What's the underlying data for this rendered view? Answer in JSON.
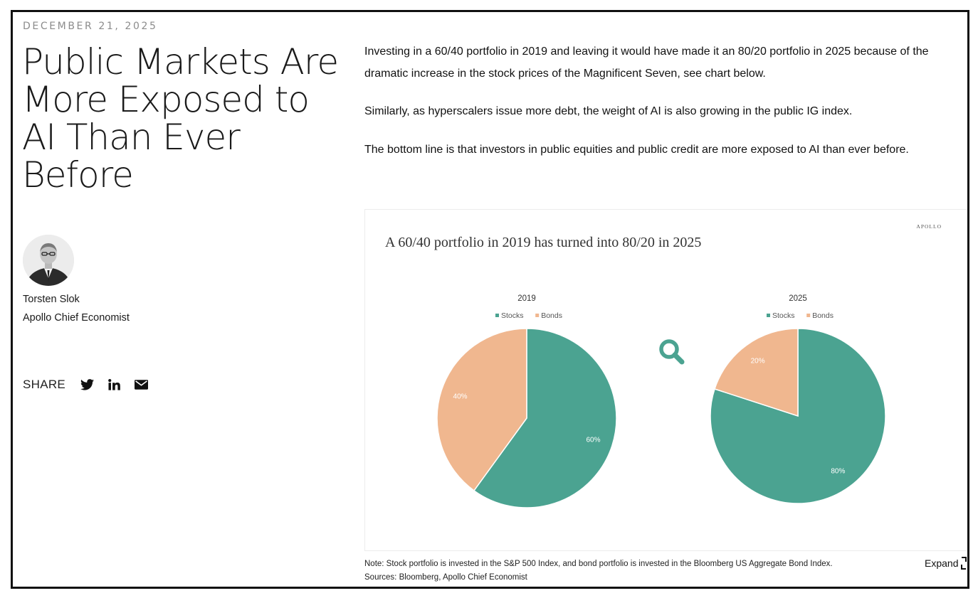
{
  "article": {
    "date": "DECEMBER 21, 2025",
    "title": "Public Markets Are More Exposed to AI Than Ever Before",
    "author": {
      "name": "Torsten Slok",
      "role": "Apollo Chief Economist"
    },
    "share_label": "SHARE",
    "share_icons": [
      "twitter-icon",
      "linkedin-icon",
      "mail-icon"
    ],
    "paragraphs": [
      "Investing in a 60/40 portfolio in 2019 and leaving it would have made it an 80/20 portfolio in 2025 because of the dramatic increase in the stock prices of the Magnificent Seven, see chart below.",
      "Similarly, as hyperscalers issue more debt, the weight of AI is also growing in the public IG index.",
      "The bottom line is that investors in public equities and public credit are more exposed to AI than ever before."
    ],
    "note_line1": "Note: Stock portfolio is invested in the S&P 500 Index, and bond portfolio is invested in the Bloomberg US Aggregate Bond Index.",
    "note_line2": "Sources: Bloomberg, Apollo Chief Economist",
    "expand_label": "Expand"
  },
  "colors": {
    "stocks": "#4ba391",
    "bonds": "#f0b78f",
    "text": "#111111",
    "muted": "#8c8c8c"
  },
  "chart_data": {
    "type": "pie",
    "title": "A 60/40 portfolio in 2019 has turned into 80/20 in 2025",
    "brand": "APOLLO",
    "legend": [
      "Stocks",
      "Bonds"
    ],
    "charts": [
      {
        "label": "2019",
        "slices": [
          {
            "name": "Stocks",
            "value": 60,
            "label": "60%"
          },
          {
            "name": "Bonds",
            "value": 40,
            "label": "40%"
          }
        ]
      },
      {
        "label": "2025",
        "slices": [
          {
            "name": "Stocks",
            "value": 80,
            "label": "80%"
          },
          {
            "name": "Bonds",
            "value": 20,
            "label": "20%"
          }
        ]
      }
    ]
  }
}
